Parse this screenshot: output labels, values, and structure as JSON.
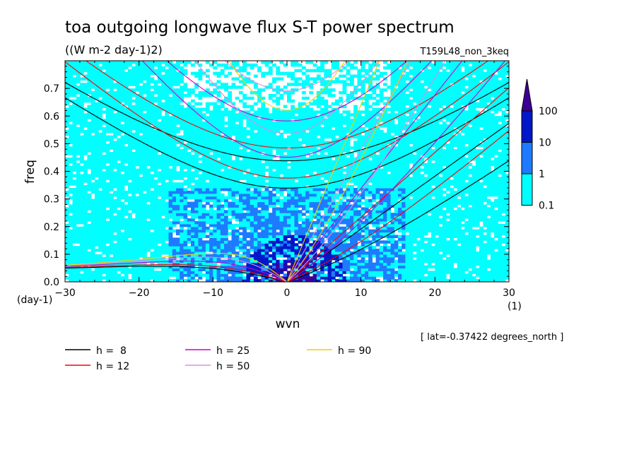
{
  "chart_data": {
    "type": "heatmap",
    "title": "toa outgoing longwave flux S-T power spectrum",
    "subtitle": "((W m-2 day-1)2)",
    "run_label": "T159L48_non_3keq",
    "xlabel": "wvn",
    "ylabel": "freq",
    "x_unit": "(1)",
    "y_unit": "(day-1)",
    "xlim": [
      -30,
      30
    ],
    "ylim": [
      0,
      0.8
    ],
    "x_ticks": [
      "-30",
      "-20",
      "-10",
      "0",
      "10",
      "20",
      "30"
    ],
    "y_ticks": [
      "0.0",
      "0.1",
      "0.2",
      "0.3",
      "0.4",
      "0.5",
      "0.6",
      "0.7"
    ],
    "latitude_note": "[ lat=-0.37422 degrees_north ]",
    "colorbar": {
      "levels": [
        "0.1",
        "1",
        "10",
        "100"
      ],
      "colors": [
        "#00ffff",
        "#1e7bff",
        "#0018c8",
        "#3c0096"
      ]
    },
    "dispersion_curves": [
      {
        "label": "h =  8",
        "h": 8,
        "color": "#000000"
      },
      {
        "label": "h = 12",
        "h": 12,
        "color": "#ff0000"
      },
      {
        "label": "h = 25",
        "h": 25,
        "color": "#d000c8"
      },
      {
        "label": "h = 50",
        "h": 50,
        "color": "#e08ce0"
      },
      {
        "label": "h = 90",
        "h": 90,
        "color": "#f0d000"
      }
    ]
  }
}
